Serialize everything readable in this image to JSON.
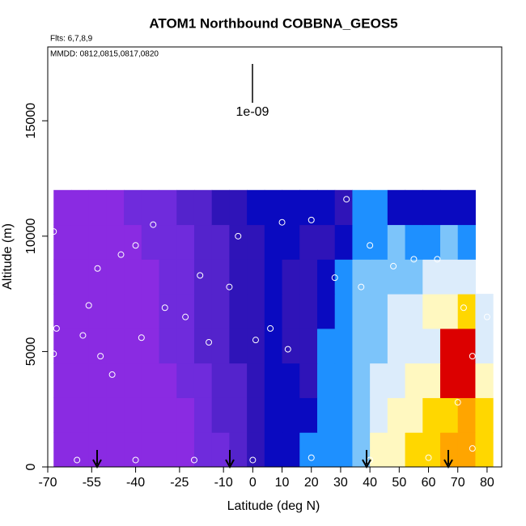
{
  "chart_data": {
    "type": "heatmap",
    "title": "ATOM1 Northbound COBBNA_GEOS5",
    "subtitle": "Flts: 6,7,8,9",
    "annotation": "MMDD: 0812,0815,0817,0820",
    "key_label": "1e-09",
    "x_label": "Latitude (deg N)",
    "y_label": "Altitude (m)",
    "xlim": [
      -70,
      85
    ],
    "ylim": [
      0,
      18200
    ],
    "xticks": [
      -70,
      -55,
      -40,
      -25,
      -10,
      0,
      10,
      20,
      30,
      40,
      50,
      60,
      70,
      80
    ],
    "yticks": [
      0,
      5000,
      10000,
      15000
    ],
    "x_edges": [
      -68,
      -62,
      -56,
      -50,
      -44,
      -38,
      -32,
      -26,
      -20,
      -14,
      -8,
      -2,
      4,
      10,
      16,
      22,
      28,
      34,
      40,
      46,
      52,
      58,
      64,
      70,
      76,
      82
    ],
    "y_edges": [
      0,
      1500,
      3000,
      4500,
      6000,
      7500,
      9000,
      10500,
      12000
    ],
    "colormap": [
      "#8a2be2",
      "#6f2bdc",
      "#5423cc",
      "#2f14b8",
      "#0a0ac0",
      "#1e90ff",
      "#7cc4fa",
      "#dcecfb",
      "#fff8c0",
      "#ffd700",
      "#ffa500",
      "#dc0000"
    ],
    "z": [
      [
        0,
        0,
        0,
        0,
        0,
        0,
        0,
        0,
        1,
        1,
        2,
        3,
        4,
        4,
        5,
        5,
        5,
        6,
        8,
        8,
        9,
        9,
        10,
        10,
        9
      ],
      [
        0,
        0,
        0,
        0,
        0,
        0,
        0,
        0,
        1,
        2,
        2,
        3,
        4,
        4,
        4,
        5,
        5,
        6,
        7,
        8,
        8,
        9,
        9,
        10,
        9
      ],
      [
        0,
        0,
        0,
        0,
        0,
        0,
        0,
        1,
        1,
        2,
        2,
        3,
        4,
        4,
        3,
        5,
        5,
        6,
        7,
        7,
        8,
        8,
        11,
        11,
        8
      ],
      [
        0,
        0,
        0,
        0,
        0,
        0,
        1,
        1,
        2,
        2,
        3,
        3,
        4,
        3,
        3,
        5,
        5,
        6,
        6,
        7,
        7,
        7,
        11,
        11,
        7
      ],
      [
        0,
        0,
        0,
        0,
        0,
        0,
        1,
        1,
        2,
        2,
        3,
        3,
        4,
        3,
        3,
        4,
        5,
        6,
        6,
        7,
        7,
        8,
        8,
        9,
        7
      ],
      [
        0,
        0,
        0,
        0,
        0,
        0,
        1,
        1,
        2,
        2,
        3,
        3,
        4,
        3,
        3,
        4,
        5,
        6,
        6,
        6,
        6,
        7,
        7,
        7,
        null
      ],
      [
        0,
        0,
        0,
        0,
        0,
        1,
        1,
        1,
        2,
        2,
        3,
        3,
        4,
        4,
        3,
        3,
        4,
        5,
        5,
        6,
        5,
        5,
        6,
        5,
        null
      ],
      [
        0,
        0,
        0,
        0,
        1,
        1,
        1,
        2,
        2,
        3,
        3,
        4,
        4,
        4,
        4,
        4,
        3,
        5,
        5,
        4,
        4,
        4,
        4,
        4,
        null
      ]
    ],
    "points": {
      "x": [
        -68,
        -67,
        -68,
        -58,
        -56,
        -53,
        -52,
        -48,
        -45,
        -40,
        -38,
        -34,
        -30,
        -23,
        -18,
        -15,
        -8,
        -5,
        1,
        6,
        10,
        12,
        20,
        28,
        32,
        40,
        37,
        48,
        55,
        63,
        72,
        75,
        80,
        70,
        75,
        -60,
        -40,
        -20,
        0,
        20,
        40,
        60
      ],
      "y": [
        10200,
        6000,
        4900,
        5700,
        7000,
        8600,
        4800,
        4000,
        9200,
        9600,
        5600,
        10500,
        6900,
        6500,
        8300,
        5400,
        7800,
        10000,
        5500,
        6000,
        10600,
        5100,
        10700,
        8200,
        11600,
        9600,
        7800,
        8700,
        9000,
        9000,
        6900,
        4800,
        6500,
        2800,
        800,
        300,
        300,
        300,
        300,
        400,
        300,
        400
      ]
    }
  }
}
